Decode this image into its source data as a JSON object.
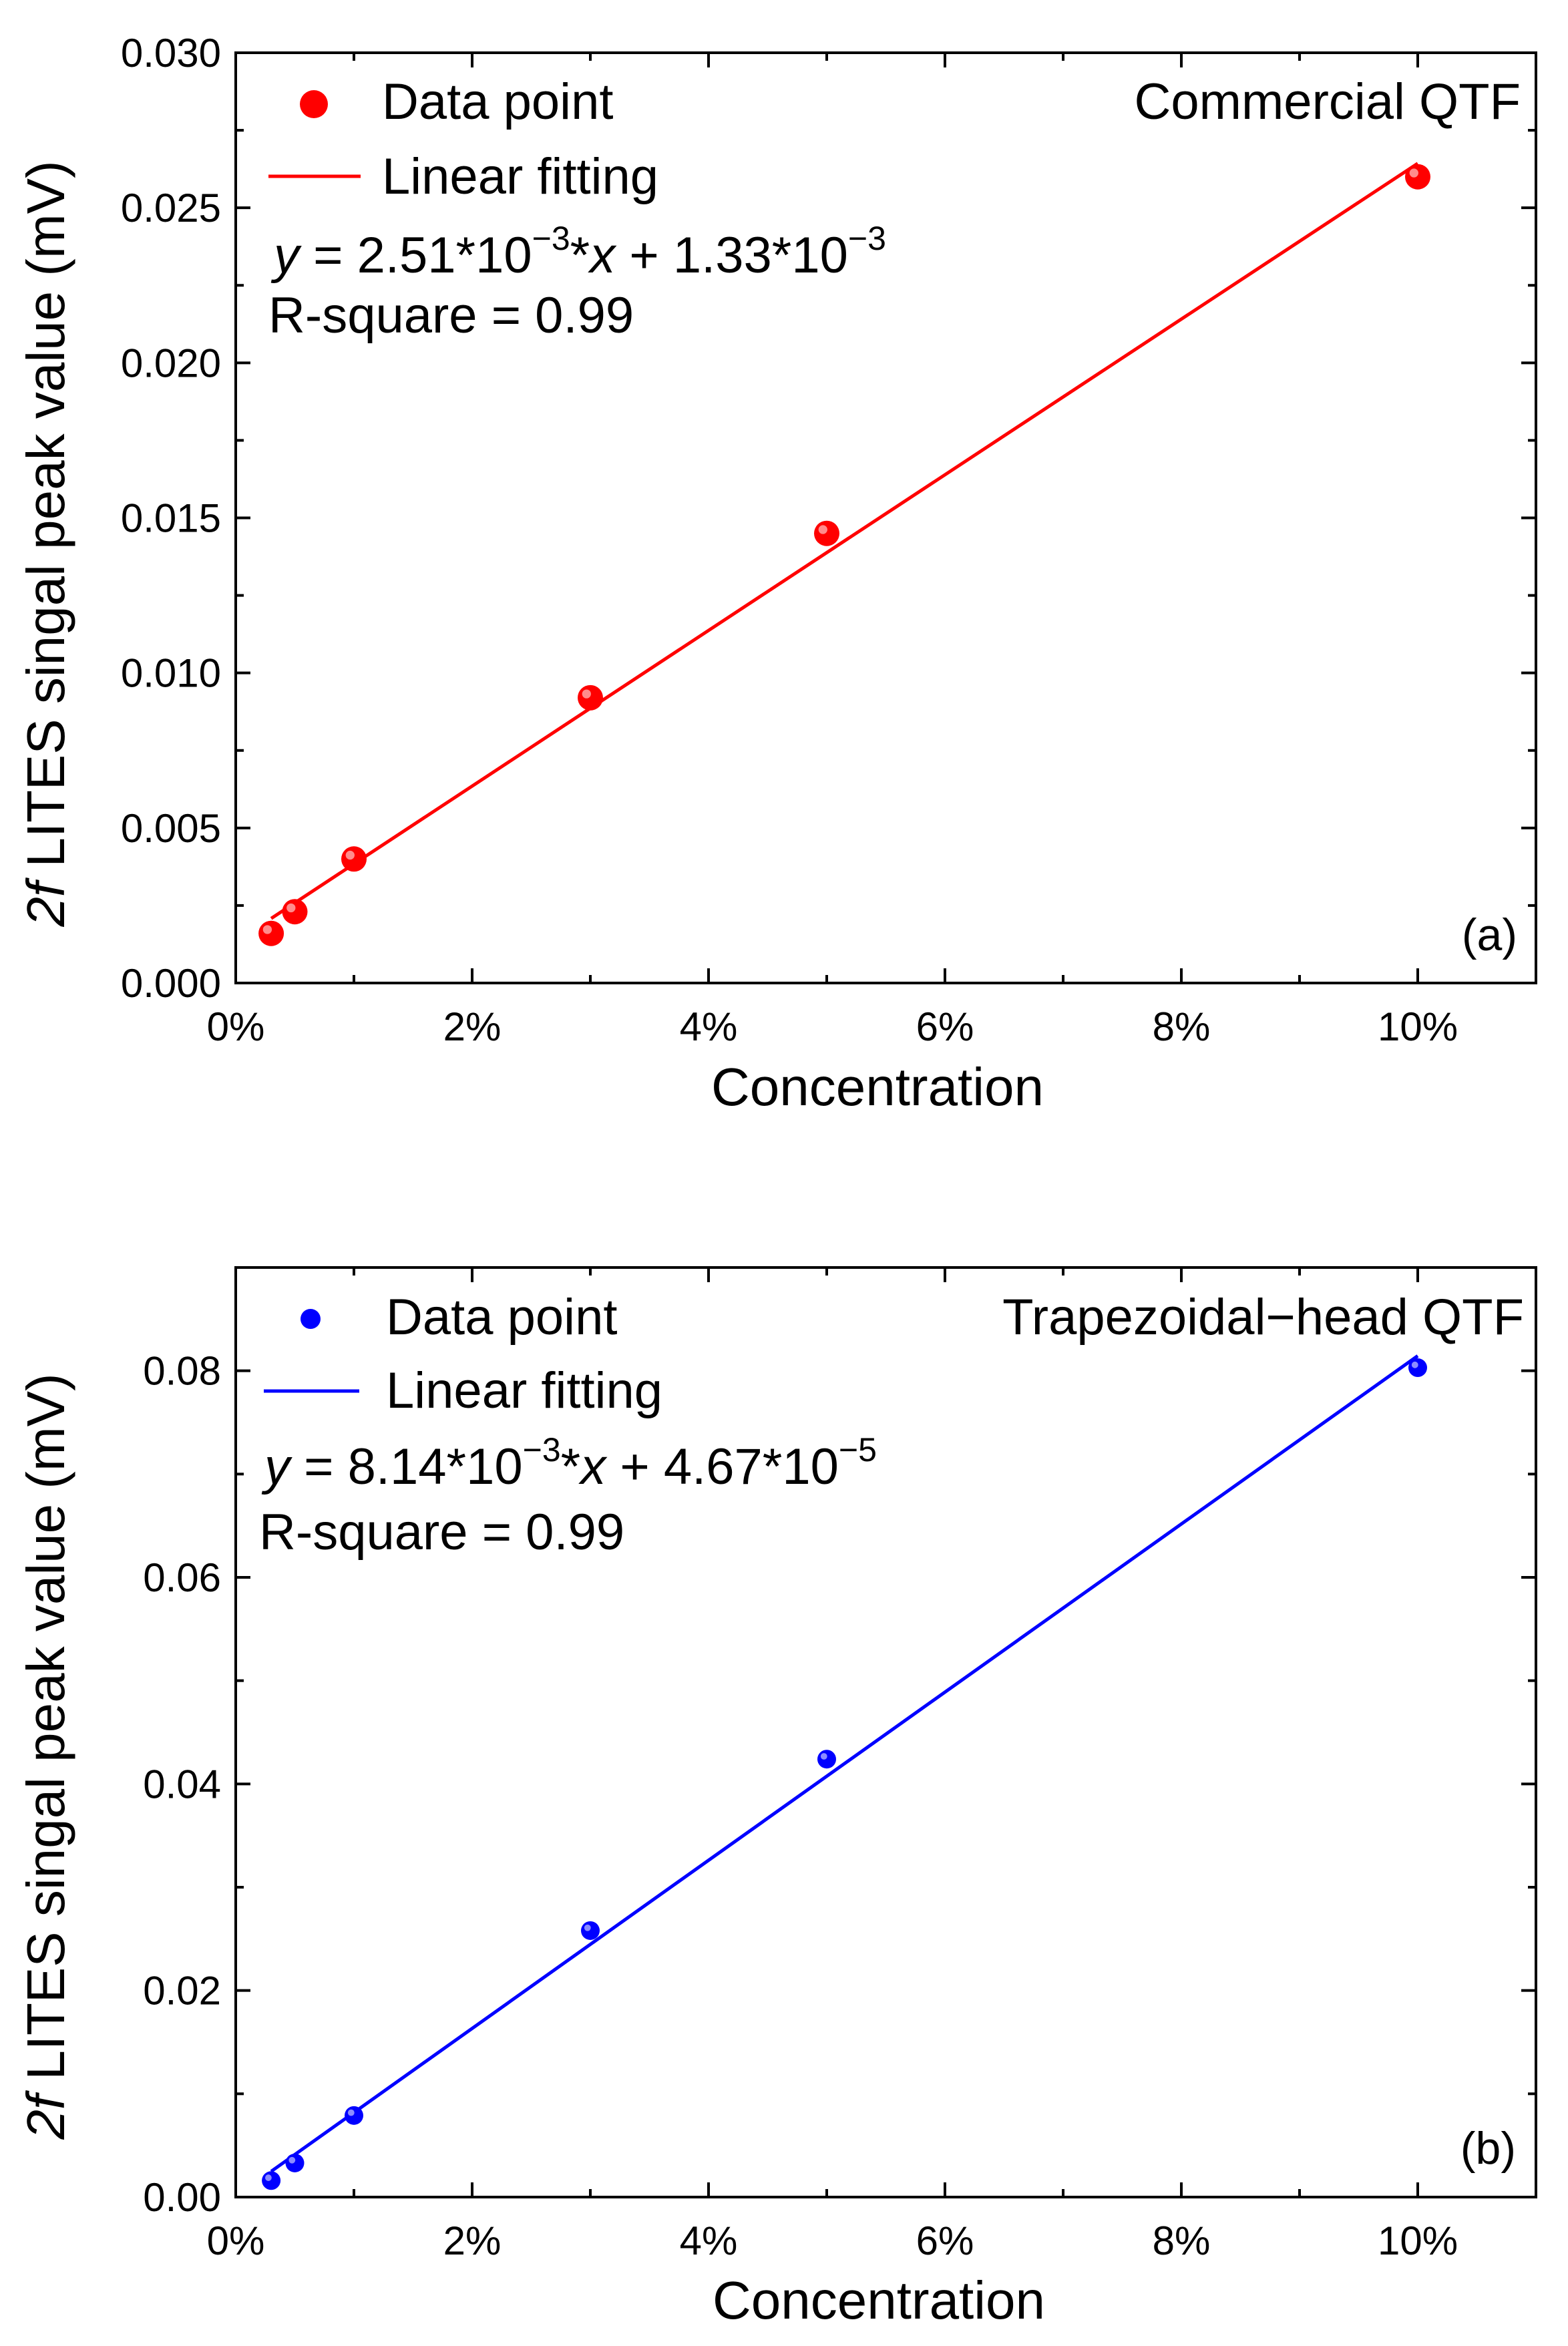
{
  "chart_data": [
    {
      "type": "scatter",
      "panel_label": "(a)",
      "device_label": "Commercial QTF",
      "xlabel": "Concentration",
      "ylabel_italic": "2f",
      "ylabel_rest": " LITES singal peak value (mV)",
      "xlim": [
        0,
        0.11
      ],
      "ylim": [
        0,
        0.03
      ],
      "xticks": [
        0,
        0.02,
        0.04,
        0.06,
        0.08,
        0.1
      ],
      "xtick_labels": [
        "0%",
        "2%",
        "4%",
        "6%",
        "8%",
        "10%"
      ],
      "yticks": [
        0,
        0.005,
        0.01,
        0.015,
        0.02,
        0.025,
        0.03
      ],
      "ytick_labels": [
        "0.000",
        "0.005",
        "0.010",
        "0.015",
        "0.020",
        "0.025",
        "0.030"
      ],
      "color": "#ff0000",
      "legend": {
        "points_label": "Data point",
        "line_label": "Linear fitting",
        "placement": "top-left"
      },
      "series": [
        {
          "name": "Data point",
          "kind": "points",
          "x": [
            0.003,
            0.005,
            0.01,
            0.03,
            0.05,
            0.1
          ],
          "y": [
            0.0016,
            0.0023,
            0.004,
            0.0092,
            0.0145,
            0.026
          ]
        },
        {
          "name": "Linear fitting",
          "kind": "line",
          "x": [
            0.003,
            0.1
          ]
        }
      ],
      "fit": {
        "slope": 0.251,
        "intercept": 0.00133
      },
      "equation": {
        "lhs": "y",
        "eq1": " = 2.51*10",
        "exp1": "−3",
        "mid": "*",
        "var": "x",
        "eq2": " + 1.33*10",
        "exp2": "−3"
      },
      "r_square": "R-square = 0.99"
    },
    {
      "type": "scatter",
      "panel_label": "(b)",
      "device_label": "Trapezoidal−head QTF",
      "xlabel": "Concentration",
      "ylabel_italic": "2f",
      "ylabel_rest": " LITES singal peak value (mV)",
      "xlim": [
        0,
        0.11
      ],
      "ylim": [
        0,
        0.09
      ],
      "xticks": [
        0,
        0.02,
        0.04,
        0.06,
        0.08,
        0.1
      ],
      "xtick_labels": [
        "0%",
        "2%",
        "4%",
        "6%",
        "8%",
        "10%"
      ],
      "yticks": [
        0,
        0.02,
        0.04,
        0.06,
        0.08
      ],
      "ytick_labels": [
        "0.00",
        "0.02",
        "0.04",
        "0.06",
        "0.08"
      ],
      "color": "#0000ff",
      "legend": {
        "points_label": "Data point",
        "line_label": "Linear fitting",
        "placement": "top-left"
      },
      "series": [
        {
          "name": "Data point",
          "kind": "points",
          "x": [
            0.003,
            0.005,
            0.01,
            0.03,
            0.05,
            0.1
          ],
          "y": [
            0.0016,
            0.0033,
            0.0079,
            0.0258,
            0.0424,
            0.0803
          ]
        },
        {
          "name": "Linear fitting",
          "kind": "line",
          "x": [
            0.003,
            0.1
          ]
        }
      ],
      "fit": {
        "slope": 0.814,
        "intercept": 4.67e-05
      },
      "equation": {
        "lhs": "y",
        "eq1": " = 8.14*10",
        "exp1": "−3",
        "mid": "*",
        "var": "x",
        "eq2": " + 4.67*10",
        "exp2": "−5"
      },
      "r_square": "R-square = 0.99"
    }
  ]
}
